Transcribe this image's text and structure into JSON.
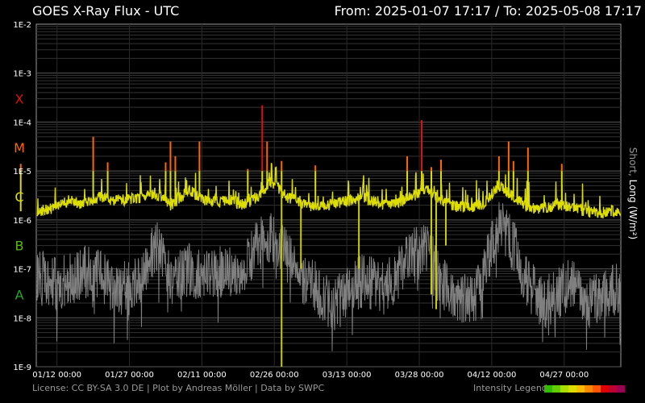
{
  "header": {
    "title": "GOES X-Ray Flux - UTC",
    "range": "From: 2025-01-07 17:17  /  To: 2025-05-08 17:17"
  },
  "footer": {
    "license": "License: CC BY-SA 3.0 DE | Plot by Andreas Möller | Data by SWPC",
    "legend_label": "Intensity Legend",
    "legend_colors": [
      "#33bb00",
      "#66cc00",
      "#aadd00",
      "#dddd00",
      "#ffbb00",
      "#ff8800",
      "#ff5500",
      "#dd0000",
      "#bb0033",
      "#990055"
    ]
  },
  "side_label": {
    "short": "Short",
    "sep": ", ",
    "long": "Long (W/m²)"
  },
  "chart_data": {
    "type": "line",
    "title": "GOES X-Ray Flux - UTC",
    "y_scale": "log",
    "ylim": [
      1e-09,
      0.01
    ],
    "y_ticks": [
      "1E-9",
      "1E-8",
      "1E-7",
      "1E-6",
      "1E-5",
      "1E-4",
      "1E-3",
      "1E-2"
    ],
    "flare_classes": [
      {
        "label": "A",
        "level": 3e-08,
        "color": "#22aa22"
      },
      {
        "label": "B",
        "level": 3e-07,
        "color": "#55bb11"
      },
      {
        "label": "C",
        "level": 3e-06,
        "color": "#dddd00"
      },
      {
        "label": "M",
        "level": 3e-05,
        "color": "#ff6600"
      },
      {
        "label": "X",
        "level": 0.0003,
        "color": "#dd1111"
      }
    ],
    "xlim": [
      "2025-01-07 17:17",
      "2025-05-08 17:17"
    ],
    "x_ticks": [
      "01/12 00:00",
      "01/27 00:00",
      "02/11 00:00",
      "02/26 00:00",
      "03/13 00:00",
      "03/28 00:00",
      "04/12 00:00",
      "04/27 00:00"
    ],
    "grid": true,
    "series": [
      {
        "name": "Short",
        "color": "#808080",
        "x": [
          "01-08",
          "01-11",
          "01-14",
          "01-17",
          "01-20",
          "01-24",
          "01-28",
          "02-01",
          "02-04",
          "02-08",
          "02-12",
          "02-16",
          "02-19",
          "02-22",
          "02-25",
          "02-28",
          "03-03",
          "03-06",
          "03-09",
          "03-12",
          "03-16",
          "03-20",
          "03-23",
          "03-26",
          "03-29",
          "04-01",
          "04-04",
          "04-07",
          "04-10",
          "04-13",
          "04-16",
          "04-19",
          "04-22",
          "04-25",
          "04-28",
          "05-01",
          "05-04",
          "05-08"
        ],
        "y": [
          8e-08,
          5e-08,
          6e-08,
          9e-08,
          7e-08,
          4e-08,
          5e-08,
          3e-07,
          6e-08,
          1e-07,
          7e-08,
          1e-07,
          8e-08,
          3e-07,
          5e-07,
          2e-07,
          6e-08,
          4e-08,
          2e-08,
          3e-08,
          6e-08,
          4e-08,
          8e-08,
          2e-07,
          3e-07,
          5e-08,
          3e-08,
          2e-08,
          1e-07,
          8e-07,
          3e-07,
          5e-08,
          2e-08,
          3e-08,
          5e-08,
          2e-08,
          3e-08,
          4e-08
        ]
      },
      {
        "name": "Long",
        "color": "#dddd00",
        "x": [
          "01-08",
          "01-11",
          "01-14",
          "01-17",
          "01-20",
          "01-24",
          "01-28",
          "02-01",
          "02-04",
          "02-08",
          "02-12",
          "02-16",
          "02-19",
          "02-22",
          "02-25",
          "02-28",
          "03-03",
          "03-06",
          "03-09",
          "03-12",
          "03-16",
          "03-20",
          "03-23",
          "03-26",
          "03-29",
          "04-01",
          "04-04",
          "04-07",
          "04-10",
          "04-13",
          "04-16",
          "04-19",
          "04-22",
          "04-25",
          "04-28",
          "05-01",
          "05-04",
          "05-08"
        ],
        "y": [
          1.5e-06,
          1.8e-06,
          2.5e-06,
          2e-06,
          3e-06,
          2.5e-06,
          2.8e-06,
          3.5e-06,
          2e-06,
          4e-06,
          2.2e-06,
          2.6e-06,
          2e-06,
          3e-06,
          6e-06,
          3e-06,
          2.2e-06,
          1.8e-06,
          2e-06,
          2.4e-06,
          2.8e-06,
          2e-06,
          2.2e-06,
          3e-06,
          4.5e-06,
          2.5e-06,
          1.9e-06,
          1.8e-06,
          2.2e-06,
          5e-06,
          3e-06,
          1.8e-06,
          1.7e-06,
          2e-06,
          1.8e-06,
          1.5e-06,
          1.4e-06,
          1.6e-06
        ]
      }
    ],
    "peaks": [
      {
        "x": "01-04",
        "y": 1.4e-05
      },
      {
        "x": "01-19",
        "y": 5e-05
      },
      {
        "x": "01-22",
        "y": 1.5e-05
      },
      {
        "x": "02-03",
        "y": 1.5e-05
      },
      {
        "x": "02-04",
        "y": 4e-05
      },
      {
        "x": "02-05",
        "y": 2e-05
      },
      {
        "x": "02-10",
        "y": 4e-05
      },
      {
        "x": "02-20",
        "y": 1.1e-05
      },
      {
        "x": "02-23",
        "y": 0.00022
      },
      {
        "x": "02-24",
        "y": 4e-05
      },
      {
        "x": "02-27",
        "y": 1.6e-05
      },
      {
        "x": "03-06",
        "y": 1.3e-05
      },
      {
        "x": "03-25",
        "y": 2e-05
      },
      {
        "x": "03-28",
        "y": 0.00011
      },
      {
        "x": "03-30",
        "y": 1.2e-05
      },
      {
        "x": "04-01",
        "y": 1.7e-05
      },
      {
        "x": "04-13",
        "y": 2e-05
      },
      {
        "x": "04-15",
        "y": 4e-05
      },
      {
        "x": "04-16",
        "y": 1.6e-05
      },
      {
        "x": "04-19",
        "y": 3e-05
      },
      {
        "x": "04-26",
        "y": 1.4e-05
      }
    ],
    "dips": [
      {
        "x": "02-27",
        "y": 1e-09
      },
      {
        "x": "03-03",
        "y": 1e-07
      },
      {
        "x": "03-15",
        "y": 1e-07
      },
      {
        "x": "03-30",
        "y": 3e-08
      },
      {
        "x": "04-02",
        "y": 3e-07
      },
      {
        "x": "03-31",
        "y": 1.5e-08
      }
    ]
  }
}
